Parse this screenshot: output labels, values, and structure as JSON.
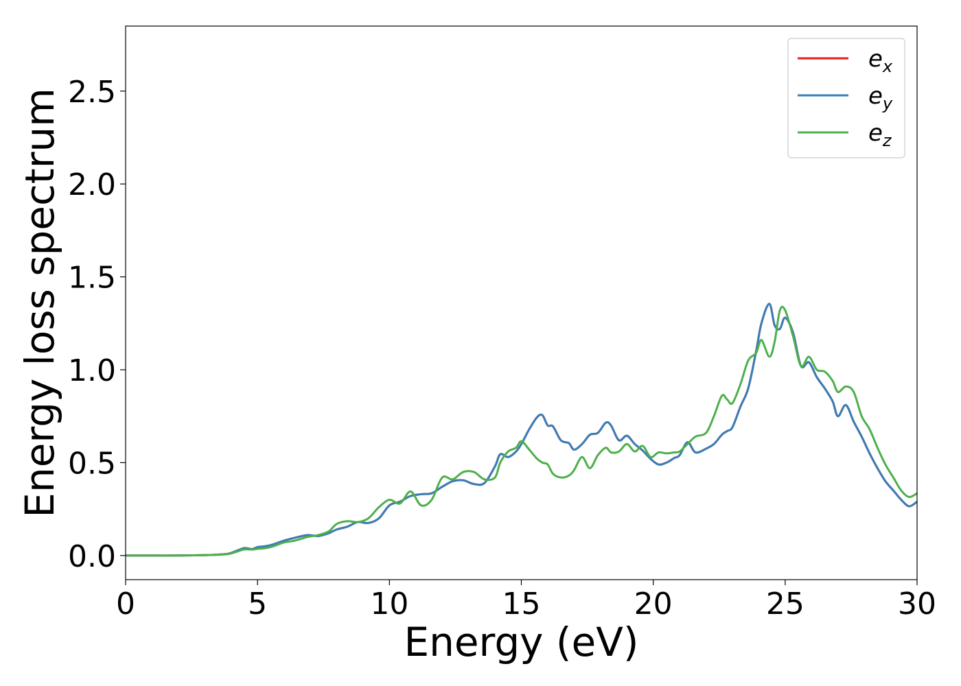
{
  "chart_data": {
    "type": "line",
    "xlabel": "Energy (eV)",
    "ylabel": "Energy loss spectrum",
    "xlim": [
      0,
      30
    ],
    "ylim": [
      -0.13,
      2.85
    ],
    "xticks": [
      "0",
      "5",
      "10",
      "15",
      "20",
      "25",
      "30"
    ],
    "yticks": [
      "0.0",
      "0.5",
      "1.0",
      "1.5",
      "2.0",
      "2.5"
    ],
    "grid": false,
    "legend_position": "top-right",
    "x": [
      0,
      1,
      2,
      3,
      3.5,
      3.9,
      4.2,
      4.5,
      4.8,
      5.0,
      5.3,
      5.6,
      6.0,
      6.4,
      6.9,
      7.3,
      7.7,
      8.0,
      8.4,
      8.8,
      9.2,
      9.6,
      10.0,
      10.4,
      10.8,
      11.2,
      11.6,
      12.0,
      12.4,
      12.8,
      13.2,
      13.6,
      14.0,
      14.2,
      14.5,
      14.8,
      15.0,
      15.3,
      15.6,
      15.8,
      16.0,
      16.2,
      16.5,
      16.8,
      17.0,
      17.3,
      17.6,
      17.9,
      18.2,
      18.4,
      18.7,
      19.0,
      19.3,
      19.6,
      19.9,
      20.2,
      20.5,
      20.8,
      21.0,
      21.3,
      21.6,
      22.0,
      22.3,
      22.6,
      22.8,
      23.0,
      23.3,
      23.6,
      23.9,
      24.1,
      24.4,
      24.6,
      24.8,
      25.0,
      25.3,
      25.6,
      25.9,
      26.2,
      26.5,
      26.8,
      27.0,
      27.3,
      27.6,
      27.9,
      28.2,
      28.5,
      28.8,
      29.1,
      29.4,
      29.7,
      30.0
    ],
    "series": [
      {
        "name": "e_x",
        "label_base": "e",
        "label_sub": "x",
        "color": "#e41a1c",
        "values": [
          0,
          0,
          0,
          0.002,
          0.005,
          0.01,
          0.025,
          0.04,
          0.035,
          0.045,
          0.05,
          0.06,
          0.08,
          0.095,
          0.11,
          0.105,
          0.12,
          0.14,
          0.155,
          0.18,
          0.175,
          0.2,
          0.27,
          0.29,
          0.32,
          0.33,
          0.335,
          0.37,
          0.4,
          0.405,
          0.385,
          0.39,
          0.48,
          0.545,
          0.53,
          0.56,
          0.6,
          0.68,
          0.745,
          0.755,
          0.7,
          0.695,
          0.62,
          0.605,
          0.57,
          0.6,
          0.65,
          0.66,
          0.715,
          0.7,
          0.62,
          0.645,
          0.6,
          0.565,
          0.52,
          0.49,
          0.5,
          0.525,
          0.54,
          0.61,
          0.555,
          0.575,
          0.6,
          0.65,
          0.67,
          0.69,
          0.8,
          0.9,
          1.1,
          1.25,
          1.355,
          1.24,
          1.22,
          1.28,
          1.2,
          1.02,
          1.04,
          0.96,
          0.9,
          0.83,
          0.75,
          0.81,
          0.72,
          0.64,
          0.55,
          0.47,
          0.4,
          0.35,
          0.3,
          0.265,
          0.29
        ]
      },
      {
        "name": "e_y",
        "label_base": "e",
        "label_sub": "y",
        "color": "#377eb8",
        "values": [
          0,
          0,
          0,
          0.002,
          0.005,
          0.01,
          0.025,
          0.04,
          0.035,
          0.045,
          0.05,
          0.06,
          0.08,
          0.095,
          0.11,
          0.105,
          0.12,
          0.14,
          0.155,
          0.18,
          0.175,
          0.2,
          0.27,
          0.29,
          0.32,
          0.33,
          0.335,
          0.37,
          0.4,
          0.405,
          0.385,
          0.39,
          0.48,
          0.545,
          0.53,
          0.56,
          0.6,
          0.68,
          0.745,
          0.755,
          0.7,
          0.695,
          0.62,
          0.605,
          0.57,
          0.6,
          0.65,
          0.66,
          0.715,
          0.7,
          0.62,
          0.645,
          0.6,
          0.565,
          0.52,
          0.49,
          0.5,
          0.525,
          0.54,
          0.61,
          0.555,
          0.575,
          0.6,
          0.65,
          0.67,
          0.69,
          0.8,
          0.9,
          1.1,
          1.25,
          1.355,
          1.24,
          1.22,
          1.28,
          1.2,
          1.02,
          1.04,
          0.96,
          0.9,
          0.83,
          0.75,
          0.81,
          0.72,
          0.64,
          0.55,
          0.47,
          0.4,
          0.35,
          0.3,
          0.265,
          0.29
        ]
      },
      {
        "name": "e_z",
        "label_base": "e",
        "label_sub": "z",
        "color": "#4daf4a",
        "values": [
          0,
          0,
          0,
          0.002,
          0.004,
          0.008,
          0.02,
          0.033,
          0.032,
          0.036,
          0.04,
          0.05,
          0.07,
          0.08,
          0.1,
          0.11,
          0.13,
          0.17,
          0.185,
          0.18,
          0.2,
          0.26,
          0.3,
          0.28,
          0.345,
          0.27,
          0.3,
          0.42,
          0.41,
          0.45,
          0.45,
          0.41,
          0.42,
          0.5,
          0.56,
          0.58,
          0.615,
          0.57,
          0.52,
          0.5,
          0.49,
          0.44,
          0.42,
          0.43,
          0.46,
          0.53,
          0.47,
          0.54,
          0.58,
          0.555,
          0.56,
          0.6,
          0.56,
          0.59,
          0.53,
          0.555,
          0.55,
          0.555,
          0.56,
          0.6,
          0.64,
          0.66,
          0.75,
          0.86,
          0.84,
          0.82,
          0.92,
          1.05,
          1.09,
          1.16,
          1.07,
          1.15,
          1.32,
          1.32,
          1.18,
          1.02,
          1.07,
          1.0,
          0.99,
          0.94,
          0.88,
          0.91,
          0.88,
          0.75,
          0.68,
          0.58,
          0.49,
          0.42,
          0.35,
          0.315,
          0.335
        ]
      }
    ]
  }
}
